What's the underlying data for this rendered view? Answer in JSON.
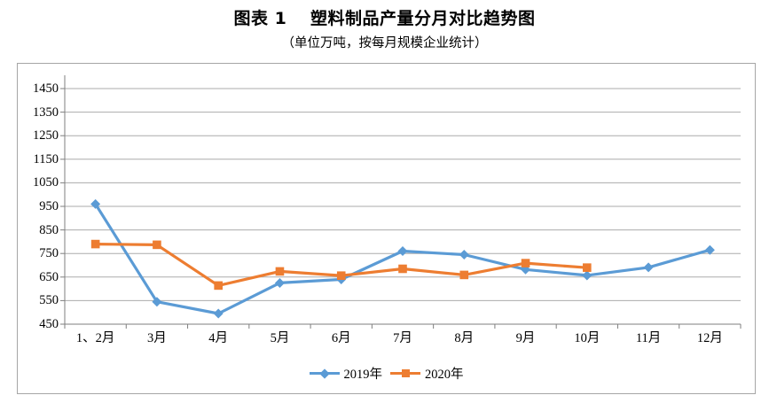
{
  "title": "图表 1　 塑料制品产量分月对比趋势图",
  "subtitle": "（单位万吨，按每月规模企业统计）",
  "chart_data": {
    "type": "line",
    "categories": [
      "1、2月",
      "3月",
      "4月",
      "5月",
      "6月",
      "7月",
      "8月",
      "9月",
      "10月",
      "11月",
      "12月"
    ],
    "series": [
      {
        "name": "2019年",
        "color": "#5B9BD5",
        "marker": "diamond",
        "values": [
          960,
          545,
          495,
          625,
          640,
          760,
          745,
          682,
          657,
          691,
          765
        ]
      },
      {
        "name": "2020年",
        "color": "#ED7D31",
        "marker": "square",
        "values": [
          790,
          787,
          614,
          674,
          656,
          685,
          659,
          709,
          690,
          null,
          null
        ]
      }
    ],
    "ylim": [
      450,
      1450
    ],
    "ytick_step": 100,
    "grid": true,
    "legend_position": "bottom",
    "xlabel": "",
    "ylabel": ""
  },
  "colors": {
    "gridline": "#ababab",
    "axis": "#7f7f7f",
    "frame_border": "#a6a6a6",
    "text": "#000000"
  }
}
